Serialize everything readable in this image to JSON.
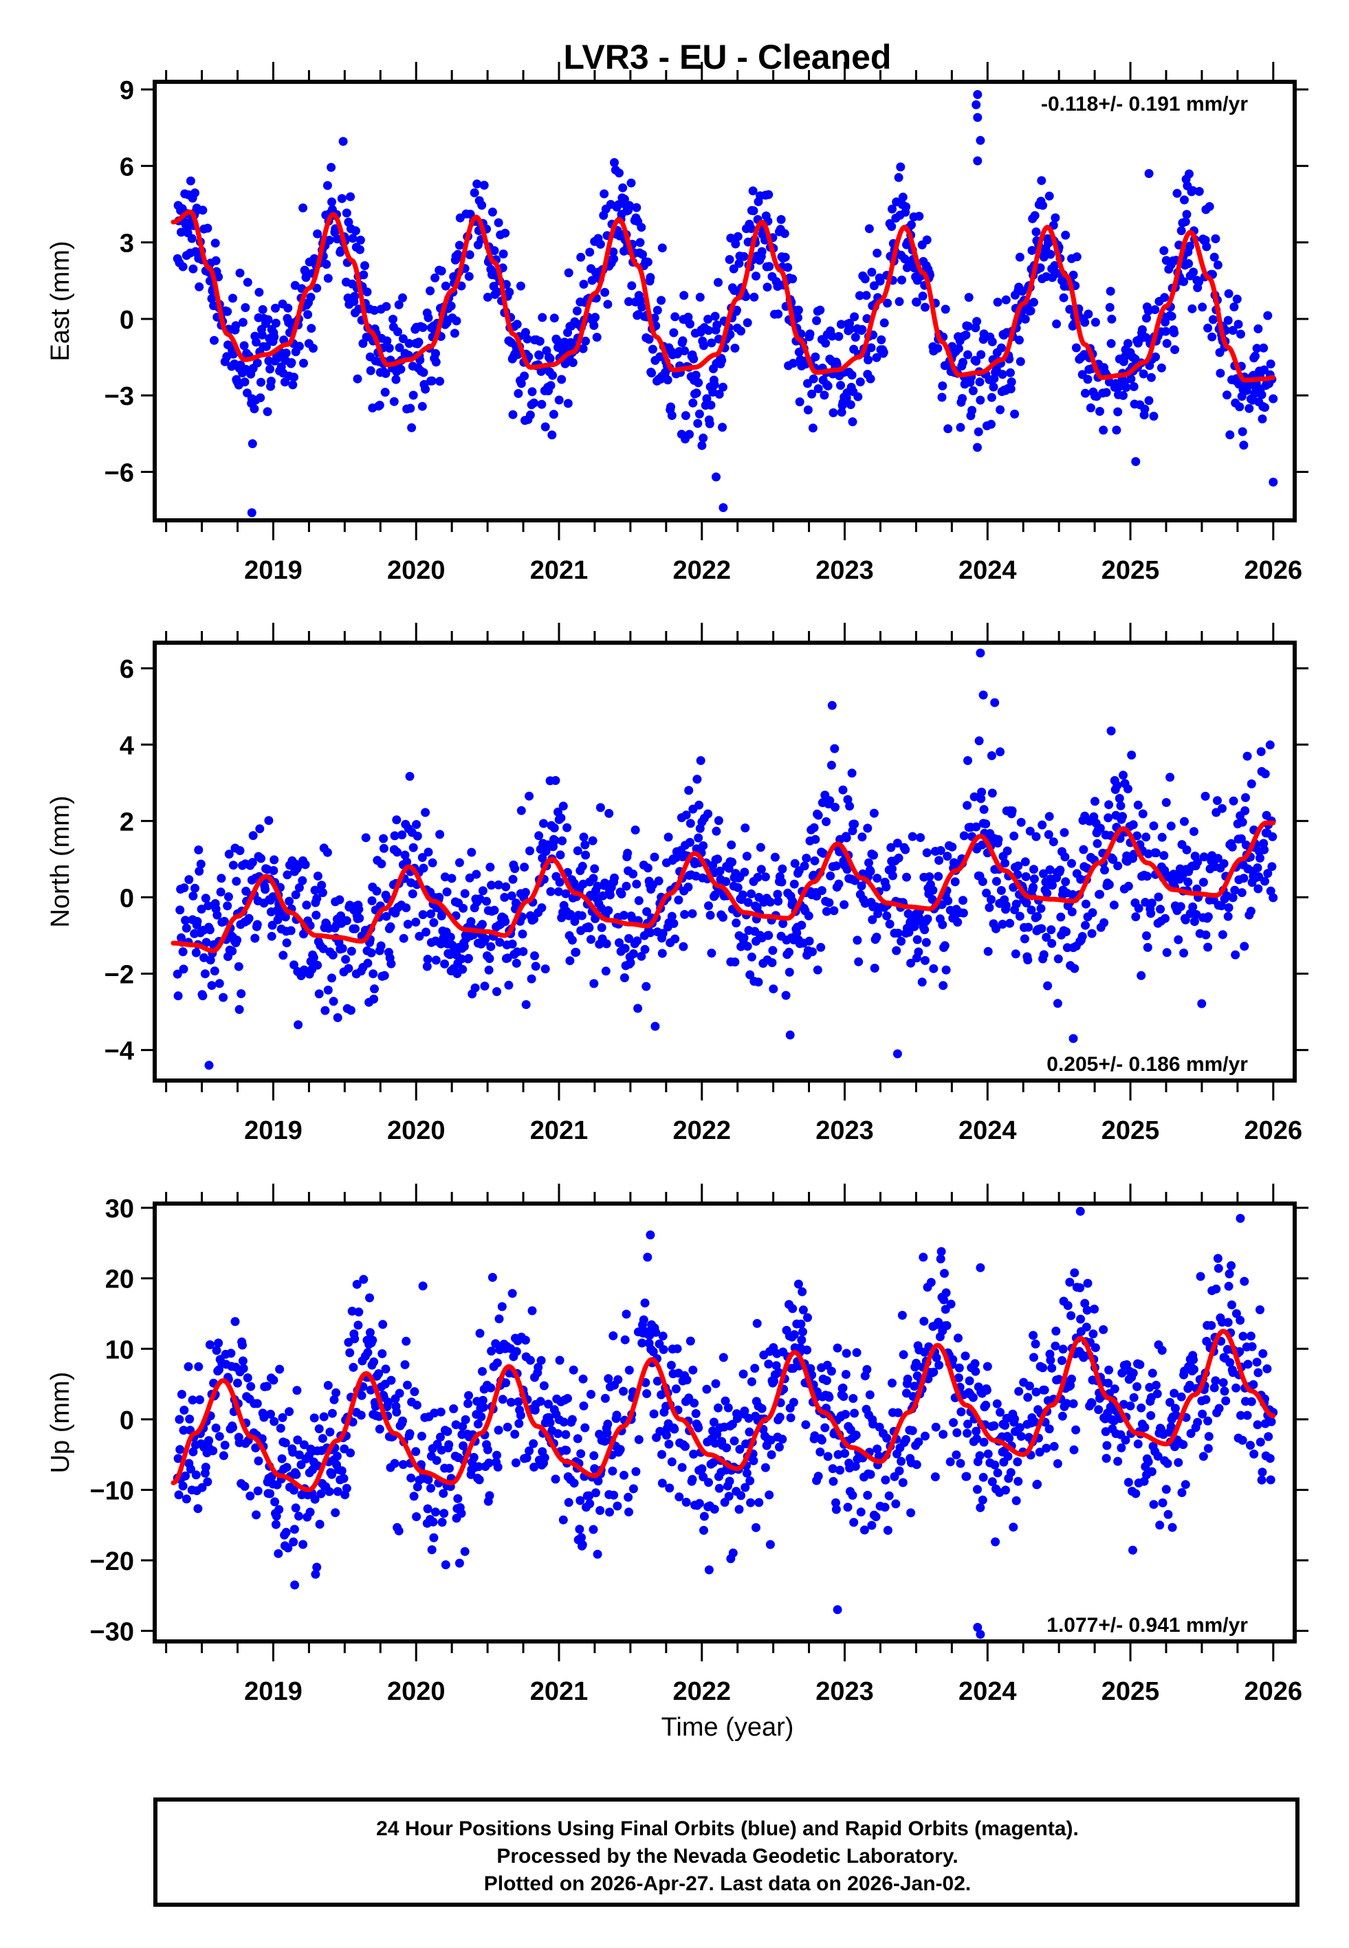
{
  "chart_data": {
    "type": "scatter",
    "title": "LVR3  - EU - Cleaned",
    "xlabel": "Time (year)",
    "xlim": [
      2018.17,
      2026.15
    ],
    "x_tick_labels": [
      "2019",
      "2020",
      "2021",
      "2022",
      "2023",
      "2024",
      "2025",
      "2026"
    ],
    "x_ticks": [
      2019,
      2020,
      2021,
      2022,
      2023,
      2024,
      2025,
      2026
    ],
    "x_minor_step": 0.25,
    "grid": false,
    "legend": "none",
    "series_colors": {
      "points": "#0000ff",
      "model": "#ff0000"
    },
    "panels": [
      {
        "name": "east",
        "ylabel": "East (mm)",
        "ylim": [
          -7.9,
          9.3
        ],
        "y_ticks": [
          -6,
          -3,
          0,
          3,
          6,
          9
        ],
        "y_tick_labels": [
          "-6",
          "-3",
          "0",
          "3",
          "6",
          "9"
        ],
        "rate_annotation": "-0.118+/- 0.191 mm/yr",
        "rate_position": "top-right",
        "model_curve": {
          "x": [
            2018.3,
            2018.42,
            2018.55,
            2018.68,
            2018.8,
            2018.95,
            2019.1,
            2019.25,
            2019.42,
            2019.55,
            2019.68,
            2019.8,
            2019.95,
            2020.1,
            2020.25,
            2020.42,
            2020.55,
            2020.68,
            2020.8,
            2020.95,
            2021.1,
            2021.25,
            2021.42,
            2021.55,
            2021.68,
            2021.8,
            2021.95,
            2022.1,
            2022.25,
            2022.42,
            2022.55,
            2022.68,
            2022.8,
            2022.95,
            2023.1,
            2023.25,
            2023.42,
            2023.55,
            2023.68,
            2023.8,
            2023.95,
            2024.1,
            2024.25,
            2024.42,
            2024.55,
            2024.68,
            2024.8,
            2024.95,
            2025.1,
            2025.25,
            2025.42,
            2025.55,
            2025.68,
            2025.8,
            2025.95,
            2026.0
          ],
          "y": [
            3.8,
            4.2,
            2.0,
            -0.6,
            -1.6,
            -1.4,
            -1.0,
            1.2,
            4.1,
            2.3,
            -0.5,
            -1.8,
            -1.6,
            -1.1,
            1.1,
            4.0,
            2.2,
            -0.6,
            -1.9,
            -1.8,
            -1.3,
            1.0,
            3.9,
            2.1,
            -0.7,
            -2.0,
            -1.9,
            -1.4,
            0.8,
            3.8,
            1.9,
            -0.8,
            -2.1,
            -2.0,
            -1.5,
            0.7,
            3.6,
            1.8,
            -0.9,
            -2.2,
            -2.1,
            -1.6,
            0.6,
            3.6,
            1.7,
            -1.0,
            -2.3,
            -2.2,
            -1.7,
            0.5,
            3.4,
            1.6,
            -1.1,
            -2.4,
            -2.35,
            -2.3
          ]
        },
        "scatter_model": {
          "noise_sd": 1.2,
          "outliers": [
            [
              2018.85,
              -7.6
            ],
            [
              2022.1,
              -6.2
            ],
            [
              2022.15,
              -7.4
            ],
            [
              2023.93,
              8.8
            ],
            [
              2023.92,
              8.4
            ],
            [
              2023.93,
              7.9
            ],
            [
              2023.95,
              7.0
            ],
            [
              2023.93,
              6.2
            ],
            [
              2025.13,
              5.7
            ],
            [
              2026.0,
              -6.4
            ]
          ]
        }
      },
      {
        "name": "north",
        "ylabel": "North (mm)",
        "ylim": [
          -4.8,
          6.67
        ],
        "y_ticks": [
          -4,
          -2,
          0,
          2,
          4,
          6
        ],
        "y_tick_labels": [
          "-4",
          "-2",
          "0",
          "2",
          "4",
          "6"
        ],
        "rate_annotation": "0.205+/- 0.186 mm/yr",
        "rate_position": "bottom-right",
        "model_curve": {
          "x": [
            2018.3,
            2018.45,
            2018.58,
            2018.75,
            2018.95,
            2019.12,
            2019.3,
            2019.45,
            2019.62,
            2019.78,
            2019.95,
            2020.12,
            2020.35,
            2020.5,
            2020.62,
            2020.78,
            2020.95,
            2021.12,
            2021.35,
            2021.5,
            2021.62,
            2021.78,
            2021.95,
            2022.12,
            2022.3,
            2022.45,
            2022.6,
            2022.78,
            2022.95,
            2023.12,
            2023.3,
            2023.45,
            2023.6,
            2023.78,
            2023.95,
            2024.12,
            2024.3,
            2024.45,
            2024.6,
            2024.78,
            2024.95,
            2025.12,
            2025.3,
            2025.45,
            2025.6,
            2025.78,
            2025.95,
            2026.0
          ],
          "y": [
            -1.2,
            -1.25,
            -1.4,
            -0.5,
            0.55,
            -0.4,
            -1.0,
            -1.05,
            -1.15,
            -0.3,
            0.8,
            -0.1,
            -0.85,
            -0.9,
            -1.0,
            -0.1,
            1.0,
            0.1,
            -0.6,
            -0.7,
            -0.75,
            0.1,
            1.15,
            0.3,
            -0.4,
            -0.5,
            -0.55,
            0.4,
            1.4,
            0.5,
            -0.15,
            -0.25,
            -0.3,
            0.7,
            1.6,
            0.7,
            0.0,
            -0.05,
            -0.1,
            0.9,
            1.8,
            0.9,
            0.2,
            0.1,
            0.05,
            1.0,
            1.95,
            1.95
          ]
        },
        "scatter_model": {
          "noise_sd": 1.0,
          "outliers": [
            [
              2023.95,
              6.4
            ],
            [
              2023.97,
              5.3
            ],
            [
              2024.05,
              5.1
            ],
            [
              2018.55,
              -4.4
            ],
            [
              2023.37,
              -4.1
            ],
            [
              2024.6,
              -3.7
            ]
          ]
        }
      },
      {
        "name": "up",
        "ylabel": "Up (mm)",
        "ylim": [
          -31.5,
          30.6
        ],
        "y_ticks": [
          -30,
          -20,
          -10,
          0,
          10,
          20,
          30
        ],
        "y_tick_labels": [
          "-30",
          "-20",
          "-10",
          "0",
          "10",
          "20",
          "30"
        ],
        "rate_annotation": "1.077+/- 0.941 mm/yr",
        "rate_position": "bottom-right",
        "model_curve": {
          "x": [
            2018.3,
            2018.45,
            2018.65,
            2018.85,
            2019.05,
            2019.25,
            2019.45,
            2019.65,
            2019.85,
            2020.05,
            2020.25,
            2020.45,
            2020.65,
            2020.85,
            2021.05,
            2021.25,
            2021.45,
            2021.65,
            2021.85,
            2022.05,
            2022.25,
            2022.45,
            2022.65,
            2022.85,
            2023.05,
            2023.25,
            2023.45,
            2023.65,
            2023.85,
            2024.05,
            2024.25,
            2024.45,
            2024.65,
            2024.85,
            2025.05,
            2025.25,
            2025.45,
            2025.65,
            2025.85,
            2026.0
          ],
          "y": [
            -9.0,
            -2.0,
            5.5,
            -2.5,
            -8.0,
            -10.0,
            -3.0,
            6.5,
            -2.0,
            -7.5,
            -9.0,
            -2.0,
            7.5,
            -1.0,
            -6.0,
            -8.0,
            -1.0,
            8.5,
            0.0,
            -5.0,
            -7.0,
            0.0,
            9.5,
            1.0,
            -4.0,
            -6.0,
            1.0,
            10.5,
            2.0,
            -3.0,
            -5.0,
            2.0,
            11.5,
            3.0,
            -2.0,
            -3.5,
            3.5,
            12.5,
            4.0,
            0.5
          ]
        },
        "scatter_model": {
          "noise_sd": 6.0,
          "outliers": [
            [
              2023.93,
              -29.5
            ],
            [
              2023.95,
              -30.5
            ],
            [
              2022.95,
              -27.0
            ],
            [
              2019.15,
              -23.5
            ],
            [
              2024.65,
              29.5
            ],
            [
              2025.77,
              28.5
            ],
            [
              2021.62,
              23.0
            ],
            [
              2023.55,
              23.0
            ],
            [
              2023.95,
              21.5
            ]
          ]
        }
      }
    ]
  },
  "footer": {
    "line1": "24 Hour Positions Using Final Orbits (blue) and Rapid Orbits (magenta).",
    "line2": "Processed by the Nevada Geodetic Laboratory.",
    "line3": "Plotted on 2026-Apr-27. Last data on 2026-Jan-02."
  }
}
